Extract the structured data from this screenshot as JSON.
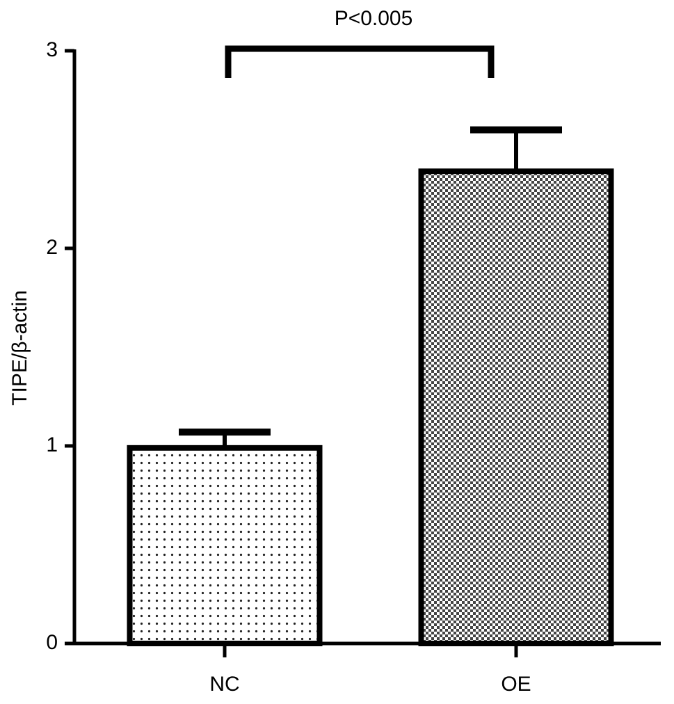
{
  "chart_data": {
    "type": "bar",
    "annotation": "P<0.005",
    "y_label": "TIPE/β-actin",
    "categories": [
      "NC",
      "OE"
    ],
    "values": [
      0.99,
      2.39
    ],
    "errors": [
      0.08,
      0.21
    ],
    "patterns": [
      "dots",
      "checks"
    ],
    "color": "#000000",
    "ylim": [
      0,
      3
    ],
    "yticks": [
      0,
      1,
      2,
      3
    ],
    "grid": false
  }
}
